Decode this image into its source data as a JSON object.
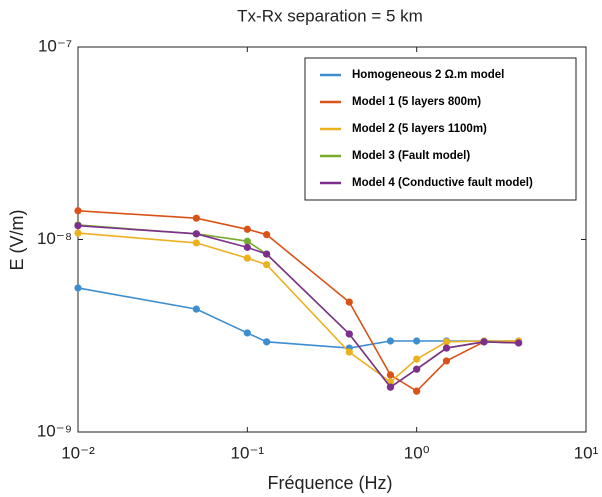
{
  "chart_data": {
    "type": "line",
    "title": "Tx-Rx separation = 5 km",
    "xlabel": "Fréquence (Hz)",
    "ylabel": "E (V/m)",
    "xscale": "log",
    "yscale": "log",
    "xlim": [
      0.01,
      10
    ],
    "ylim": [
      1e-09,
      1e-07
    ],
    "xticks": [
      {
        "value": 0.01,
        "label": "10⁻²"
      },
      {
        "value": 0.1,
        "label": "10⁻¹"
      },
      {
        "value": 1,
        "label": "10⁰"
      },
      {
        "value": 10,
        "label": "10¹"
      }
    ],
    "yticks": [
      {
        "value": 1e-09,
        "label": "10⁻⁹"
      },
      {
        "value": 1e-08,
        "label": "10⁻⁸"
      },
      {
        "value": 1e-07,
        "label": "10⁻⁷"
      }
    ],
    "grid": false,
    "legend": "northeast",
    "x": [
      0.01,
      0.05,
      0.1,
      0.13,
      0.4,
      0.7,
      1,
      1.5,
      2.5,
      4
    ],
    "series": [
      {
        "name": "Homogeneous 2 Ω.m model",
        "color": "#3d8ecf",
        "values": [
          5.6e-09,
          4.35e-09,
          3.27e-09,
          2.94e-09,
          2.73e-09,
          2.97e-09,
          2.97e-09,
          2.97e-09,
          2.97e-09,
          2.97e-09
        ]
      },
      {
        "name": "Model 1 (5 layers 800m)",
        "color": "#d95319",
        "values": [
          1.41e-08,
          1.29e-08,
          1.13e-08,
          1.06e-08,
          4.73e-09,
          1.98e-09,
          1.63e-09,
          2.34e-09,
          2.94e-09,
          2.94e-09
        ]
      },
      {
        "name": "Model 2 (5 layers 1100m)",
        "color": "#edb120",
        "values": [
          1.08e-08,
          9.6e-09,
          8e-09,
          7.4e-09,
          2.6e-09,
          1.82e-09,
          2.39e-09,
          2.94e-09,
          2.97e-09,
          2.97e-09
        ]
      },
      {
        "name": "Model 3 (Fault model)",
        "color": "#77ac30",
        "values": [
          1.19e-08,
          1.07e-08,
          9.8e-09,
          8.4e-09,
          3.23e-09,
          1.71e-09,
          2.12e-09,
          2.73e-09,
          2.94e-09,
          2.9e-09
        ]
      },
      {
        "name": "Model 4 (Conductive fault model)",
        "color": "#7e2f8e",
        "values": [
          1.18e-08,
          1.07e-08,
          9.1e-09,
          8.4e-09,
          3.23e-09,
          1.71e-09,
          2.12e-09,
          2.73e-09,
          2.94e-09,
          2.9e-09
        ]
      }
    ]
  }
}
